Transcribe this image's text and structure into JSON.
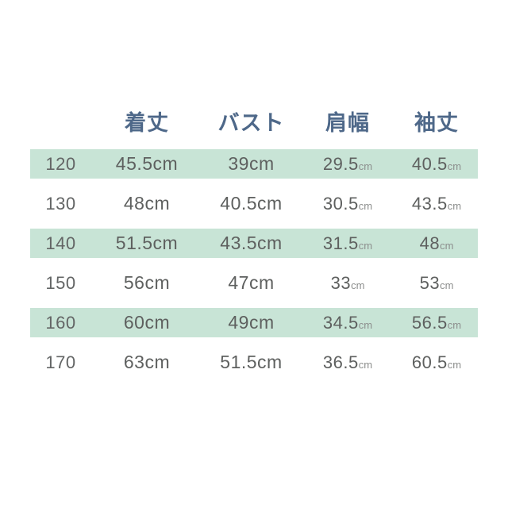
{
  "colors": {
    "band_green": "#c8e4d6",
    "header_text": "#4e6889",
    "value_text": "#5e605f",
    "unit_small_text": "#8c8e8d",
    "background": "#ffffff"
  },
  "table": {
    "columns": [
      {
        "label": "着丈"
      },
      {
        "label": "バスト"
      },
      {
        "label": "肩幅"
      },
      {
        "label": "袖丈"
      }
    ],
    "rows": [
      {
        "size": "120",
        "length": {
          "v": "45.5",
          "u": "cm"
        },
        "bust": {
          "v": "39",
          "u": "cm"
        },
        "shoulder": {
          "v": "29.5",
          "u": "cm"
        },
        "sleeve": {
          "v": "40.5",
          "u": "cm"
        }
      },
      {
        "size": "130",
        "length": {
          "v": "48",
          "u": "cm"
        },
        "bust": {
          "v": "40.5",
          "u": "cm"
        },
        "shoulder": {
          "v": "30.5",
          "u": "cm"
        },
        "sleeve": {
          "v": "43.5",
          "u": "cm"
        }
      },
      {
        "size": "140",
        "length": {
          "v": "51.5",
          "u": "cm"
        },
        "bust": {
          "v": "43.5",
          "u": "cm"
        },
        "shoulder": {
          "v": "31.5",
          "u": "cm"
        },
        "sleeve": {
          "v": "48",
          "u": "cm"
        }
      },
      {
        "size": "150",
        "length": {
          "v": "56",
          "u": "cm"
        },
        "bust": {
          "v": "47",
          "u": "cm"
        },
        "shoulder": {
          "v": "33",
          "u": "cm"
        },
        "sleeve": {
          "v": "53",
          "u": "cm"
        }
      },
      {
        "size": "160",
        "length": {
          "v": "60",
          "u": "cm"
        },
        "bust": {
          "v": "49",
          "u": "cm"
        },
        "shoulder": {
          "v": "34.5",
          "u": "cm"
        },
        "sleeve": {
          "v": "56.5",
          "u": "cm"
        }
      },
      {
        "size": "170",
        "length": {
          "v": "63",
          "u": "cm"
        },
        "bust": {
          "v": "51.5",
          "u": "cm"
        },
        "shoulder": {
          "v": "36.5",
          "u": "cm"
        },
        "sleeve": {
          "v": "60.5",
          "u": "cm"
        }
      }
    ]
  },
  "chart_data": {
    "type": "table",
    "title": "",
    "columns": [
      "",
      "着丈",
      "バスト",
      "肩幅",
      "袖丈"
    ],
    "unit": "cm",
    "rows": [
      [
        "120",
        "45.5cm",
        "39cm",
        "29.5cm",
        "40.5cm"
      ],
      [
        "130",
        "48cm",
        "40.5cm",
        "30.5cm",
        "43.5cm"
      ],
      [
        "140",
        "51.5cm",
        "43.5cm",
        "31.5cm",
        "48cm"
      ],
      [
        "150",
        "56cm",
        "47cm",
        "33cm",
        "53cm"
      ],
      [
        "160",
        "60cm",
        "49cm",
        "34.5cm",
        "56.5cm"
      ],
      [
        "170",
        "63cm",
        "51.5cm",
        "36.5cm",
        "60.5cm"
      ]
    ]
  }
}
